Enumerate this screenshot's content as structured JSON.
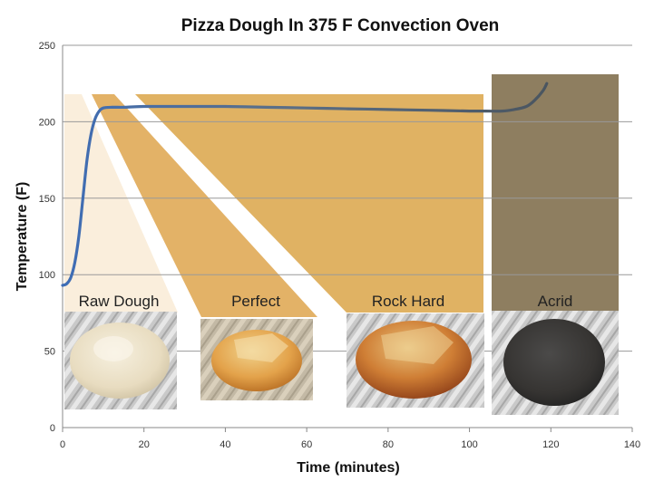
{
  "chart_data": {
    "type": "line",
    "title": "Pizza Dough In 375 F Convection Oven",
    "xlabel": "Time (minutes)",
    "ylabel": "Temperature (F)",
    "xlim": [
      0,
      140
    ],
    "ylim": [
      0,
      250
    ],
    "xticks": [
      0,
      20,
      40,
      60,
      80,
      100,
      120,
      140
    ],
    "yticks": [
      0,
      50,
      100,
      150,
      200,
      250
    ],
    "grid": "horizontal",
    "series": [
      {
        "x": [
          0,
          1,
          2,
          3,
          4,
          5,
          6,
          7,
          8,
          9,
          10,
          12,
          15,
          20,
          30,
          40,
          50,
          60,
          70,
          80,
          90,
          100,
          104,
          108,
          111,
          114,
          116,
          118,
          119
        ],
        "y": [
          93,
          94,
          98,
          108,
          125,
          150,
          175,
          192,
          202,
          207,
          209,
          209.5,
          209.5,
          210,
          210,
          210,
          209.5,
          209,
          208.5,
          208,
          207.5,
          207,
          207,
          207,
          208,
          210,
          214,
          220,
          225
        ]
      }
    ],
    "stages": [
      {
        "label": "Raw Dough",
        "color": "#f9ecd8",
        "from": 0,
        "to": 10
      },
      {
        "label": "Perfect",
        "color": "#e3b267",
        "from": 10,
        "to": 12
      },
      {
        "label": "Rock Hard",
        "color": "#e0b263",
        "from": 12,
        "to": 103
      },
      {
        "label": "Acrid",
        "color": "#8e7e60",
        "from": 105,
        "to": 136
      }
    ],
    "colors": {
      "line_start": "#3e6db6",
      "line_end": "#4a5560",
      "grid": "#999999",
      "dough_raw": "#efe6cf",
      "dough_baked": "#d9913b",
      "dough_burnt": "#3d3a38",
      "foil": "#b8b8b8"
    }
  }
}
